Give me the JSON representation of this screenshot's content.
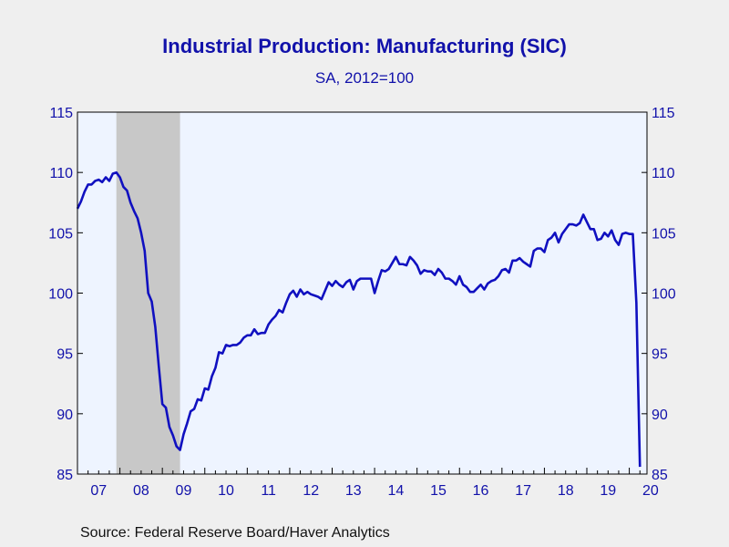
{
  "title": "Industrial Production: Manufacturing (SIC)",
  "subtitle": "SA, 2012=100",
  "source": "Source:  Federal Reserve Board/Haver Analytics",
  "colors": {
    "line": "#1010c0",
    "plot_bg": "#eef4ff",
    "recession": "#c8c8c8",
    "text": "#1111aa",
    "page_bg": "#efefef"
  },
  "chart_data": {
    "type": "line",
    "title": "Industrial Production: Manufacturing (SIC)",
    "subtitle": "SA, 2012=100",
    "xlabel": "",
    "ylabel": "",
    "ylim": [
      85,
      115
    ],
    "xlim": [
      "2007-01",
      "2020-06"
    ],
    "y_ticks": [
      "85",
      "90",
      "95",
      "100",
      "105",
      "110",
      "115"
    ],
    "x_tick_labels": [
      "07",
      "08",
      "09",
      "10",
      "11",
      "12",
      "13",
      "14",
      "15",
      "16",
      "17",
      "18",
      "19",
      "20"
    ],
    "y_axis_left": true,
    "y_axis_right": true,
    "grid": false,
    "shaded_regions": [
      {
        "start": "2007-12",
        "end": "2009-06"
      }
    ],
    "series": [
      {
        "points": [
          [
            "2007-01",
            107.0
          ],
          [
            "2007-02",
            107.6
          ],
          [
            "2007-03",
            108.4
          ],
          [
            "2007-04",
            109.0
          ],
          [
            "2007-05",
            109.0
          ],
          [
            "2007-06",
            109.3
          ],
          [
            "2007-07",
            109.4
          ],
          [
            "2007-08",
            109.2
          ],
          [
            "2007-09",
            109.6
          ],
          [
            "2007-10",
            109.3
          ],
          [
            "2007-11",
            109.9
          ],
          [
            "2007-12",
            110.0
          ],
          [
            "2008-01",
            109.6
          ],
          [
            "2008-02",
            108.8
          ],
          [
            "2008-03",
            108.5
          ],
          [
            "2008-04",
            107.5
          ],
          [
            "2008-05",
            106.8
          ],
          [
            "2008-06",
            106.2
          ],
          [
            "2008-07",
            105.0
          ],
          [
            "2008-08",
            103.5
          ],
          [
            "2008-09",
            100.0
          ],
          [
            "2008-10",
            99.3
          ],
          [
            "2008-11",
            97.2
          ],
          [
            "2008-12",
            93.9
          ],
          [
            "2009-01",
            90.8
          ],
          [
            "2009-02",
            90.5
          ],
          [
            "2009-03",
            88.9
          ],
          [
            "2009-04",
            88.2
          ],
          [
            "2009-05",
            87.3
          ],
          [
            "2009-06",
            87.0
          ],
          [
            "2009-07",
            88.3
          ],
          [
            "2009-08",
            89.2
          ],
          [
            "2009-09",
            90.2
          ],
          [
            "2009-10",
            90.4
          ],
          [
            "2009-11",
            91.2
          ],
          [
            "2009-12",
            91.1
          ],
          [
            "2010-01",
            92.1
          ],
          [
            "2010-02",
            92.0
          ],
          [
            "2010-03",
            93.1
          ],
          [
            "2010-04",
            93.8
          ],
          [
            "2010-05",
            95.1
          ],
          [
            "2010-06",
            95.0
          ],
          [
            "2010-07",
            95.7
          ],
          [
            "2010-08",
            95.6
          ],
          [
            "2010-09",
            95.7
          ],
          [
            "2010-10",
            95.7
          ],
          [
            "2010-11",
            95.9
          ],
          [
            "2010-12",
            96.3
          ],
          [
            "2011-01",
            96.5
          ],
          [
            "2011-02",
            96.5
          ],
          [
            "2011-03",
            97.0
          ],
          [
            "2011-04",
            96.6
          ],
          [
            "2011-05",
            96.7
          ],
          [
            "2011-06",
            96.7
          ],
          [
            "2011-07",
            97.4
          ],
          [
            "2011-08",
            97.8
          ],
          [
            "2011-09",
            98.1
          ],
          [
            "2011-10",
            98.6
          ],
          [
            "2011-11",
            98.4
          ],
          [
            "2011-12",
            99.2
          ],
          [
            "2012-01",
            99.9
          ],
          [
            "2012-02",
            100.2
          ],
          [
            "2012-03",
            99.7
          ],
          [
            "2012-04",
            100.3
          ],
          [
            "2012-05",
            99.9
          ],
          [
            "2012-06",
            100.1
          ],
          [
            "2012-07",
            99.9
          ],
          [
            "2012-08",
            99.8
          ],
          [
            "2012-09",
            99.7
          ],
          [
            "2012-10",
            99.5
          ],
          [
            "2012-11",
            100.2
          ],
          [
            "2012-12",
            100.9
          ],
          [
            "2013-01",
            100.6
          ],
          [
            "2013-02",
            101.0
          ],
          [
            "2013-03",
            100.7
          ],
          [
            "2013-04",
            100.5
          ],
          [
            "2013-05",
            100.9
          ],
          [
            "2013-06",
            101.1
          ],
          [
            "2013-07",
            100.3
          ],
          [
            "2013-08",
            101.0
          ],
          [
            "2013-09",
            101.2
          ],
          [
            "2013-10",
            101.2
          ],
          [
            "2013-11",
            101.2
          ],
          [
            "2013-12",
            101.2
          ],
          [
            "2014-01",
            100.0
          ],
          [
            "2014-02",
            101.0
          ],
          [
            "2014-03",
            101.9
          ],
          [
            "2014-04",
            101.8
          ],
          [
            "2014-05",
            102.0
          ],
          [
            "2014-06",
            102.5
          ],
          [
            "2014-07",
            103.0
          ],
          [
            "2014-08",
            102.4
          ],
          [
            "2014-09",
            102.4
          ],
          [
            "2014-10",
            102.3
          ],
          [
            "2014-11",
            103.0
          ],
          [
            "2014-12",
            102.7
          ],
          [
            "2015-01",
            102.3
          ],
          [
            "2015-02",
            101.6
          ],
          [
            "2015-03",
            101.9
          ],
          [
            "2015-04",
            101.8
          ],
          [
            "2015-05",
            101.8
          ],
          [
            "2015-06",
            101.5
          ],
          [
            "2015-07",
            102.0
          ],
          [
            "2015-08",
            101.7
          ],
          [
            "2015-09",
            101.2
          ],
          [
            "2015-10",
            101.2
          ],
          [
            "2015-11",
            101.0
          ],
          [
            "2015-12",
            100.7
          ],
          [
            "2016-01",
            101.4
          ],
          [
            "2016-02",
            100.7
          ],
          [
            "2016-03",
            100.5
          ],
          [
            "2016-04",
            100.1
          ],
          [
            "2016-05",
            100.1
          ],
          [
            "2016-06",
            100.4
          ],
          [
            "2016-07",
            100.7
          ],
          [
            "2016-08",
            100.3
          ],
          [
            "2016-09",
            100.8
          ],
          [
            "2016-10",
            101.0
          ],
          [
            "2016-11",
            101.1
          ],
          [
            "2016-12",
            101.4
          ],
          [
            "2017-01",
            101.9
          ],
          [
            "2017-02",
            102.0
          ],
          [
            "2017-03",
            101.7
          ],
          [
            "2017-04",
            102.7
          ],
          [
            "2017-05",
            102.7
          ],
          [
            "2017-06",
            102.9
          ],
          [
            "2017-07",
            102.6
          ],
          [
            "2017-08",
            102.4
          ],
          [
            "2017-09",
            102.2
          ],
          [
            "2017-10",
            103.5
          ],
          [
            "2017-11",
            103.7
          ],
          [
            "2017-12",
            103.7
          ],
          [
            "2018-01",
            103.4
          ],
          [
            "2018-02",
            104.4
          ],
          [
            "2018-03",
            104.6
          ],
          [
            "2018-04",
            105.0
          ],
          [
            "2018-05",
            104.2
          ],
          [
            "2018-06",
            104.9
          ],
          [
            "2018-07",
            105.3
          ],
          [
            "2018-08",
            105.7
          ],
          [
            "2018-09",
            105.7
          ],
          [
            "2018-10",
            105.6
          ],
          [
            "2018-11",
            105.8
          ],
          [
            "2018-12",
            106.5
          ],
          [
            "2019-01",
            105.9
          ],
          [
            "2019-02",
            105.3
          ],
          [
            "2019-03",
            105.3
          ],
          [
            "2019-04",
            104.4
          ],
          [
            "2019-05",
            104.5
          ],
          [
            "2019-06",
            105.0
          ],
          [
            "2019-07",
            104.7
          ],
          [
            "2019-08",
            105.2
          ],
          [
            "2019-09",
            104.4
          ],
          [
            "2019-10",
            104.0
          ],
          [
            "2019-11",
            104.9
          ],
          [
            "2019-12",
            105.0
          ],
          [
            "2020-01",
            104.9
          ],
          [
            "2020-02",
            104.9
          ],
          [
            "2020-03",
            99.2
          ],
          [
            "2020-04",
            85.6
          ]
        ]
      }
    ]
  }
}
